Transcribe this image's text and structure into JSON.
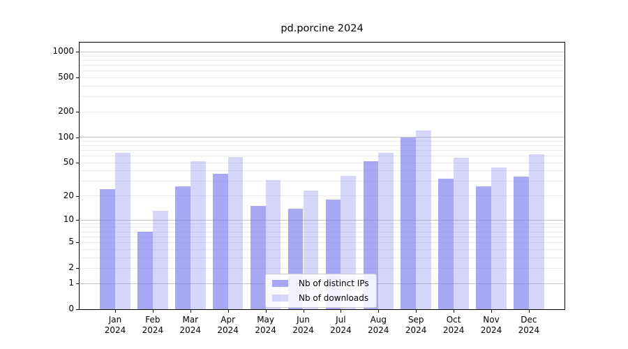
{
  "title": "pd.porcine 2024",
  "chart_data": {
    "type": "bar",
    "title": "pd.porcine 2024",
    "categories": [
      "Jan",
      "Feb",
      "Mar",
      "Apr",
      "May",
      "Jun",
      "Jul",
      "Aug",
      "Sep",
      "Oct",
      "Nov",
      "Dec"
    ],
    "year_label": "2024",
    "series": [
      {
        "name": "Nb of distinct IPs",
        "color": "rgba(120,120,238,0.65)",
        "values": [
          24,
          7,
          26,
          37,
          15,
          14,
          18,
          52,
          99,
          32,
          26,
          34
        ]
      },
      {
        "name": "Nb of downloads",
        "color": "rgba(120,120,238,0.30)",
        "values": [
          66,
          13,
          52,
          58,
          31,
          23,
          35,
          65,
          120,
          57,
          44,
          63
        ]
      }
    ],
    "y_ticks": [
      0,
      1,
      2,
      5,
      10,
      20,
      50,
      100,
      200,
      500,
      1000
    ],
    "scale": "log1p",
    "ylim": [
      0,
      1286
    ],
    "grid": {
      "major": [
        1,
        10,
        100,
        1000
      ],
      "minor": [
        2,
        3,
        4,
        5,
        6,
        7,
        8,
        9,
        20,
        30,
        40,
        50,
        60,
        70,
        80,
        90,
        200,
        300,
        400,
        500,
        600,
        700,
        800,
        900
      ],
      "major_color": "#c6c6c6",
      "minor_color": "#ebebeb"
    },
    "legend_position": "lower center"
  }
}
